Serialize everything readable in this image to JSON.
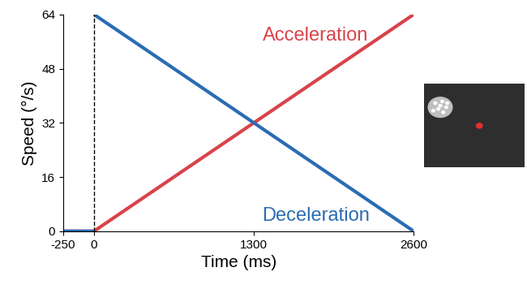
{
  "chart_data": {
    "type": "line",
    "x": [
      -250,
      0,
      0,
      0,
      2600
    ],
    "series": [
      {
        "name": "Acceleration",
        "color": "#d9434b",
        "values": [
          0,
          0,
          0,
          0,
          64
        ]
      },
      {
        "name": "Deceleration",
        "color": "#2b6cb3",
        "values": [
          0,
          0,
          null,
          64,
          0
        ]
      }
    ],
    "vline_x": 0,
    "x_label": "Time (ms)",
    "y_label": "Speed (°/s)",
    "xlim": [
      -250,
      2600
    ],
    "xticks": [
      -250,
      0,
      1300,
      2600
    ],
    "ylim": [
      0,
      64
    ],
    "yticks": [
      0,
      16,
      32,
      48,
      64
    ],
    "grid": false
  }
}
